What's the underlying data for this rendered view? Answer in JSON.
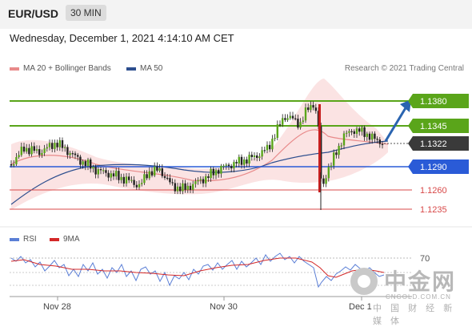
{
  "header": {
    "pair": "EUR/USD",
    "timeframe": "30 MIN"
  },
  "date": "Wednesday, December 1, 2021 4:14:10 AM CET",
  "legend": {
    "bollinger": "MA 20 + Bollinger Bands",
    "ma50": "MA 50",
    "rsi": "RSI",
    "rsi_ma": "9MA",
    "bollinger_color": "#e88a8a",
    "ma50_color": "#2d4e8e",
    "rsi_color": "#5b7fd6",
    "rsi_ma_color": "#d42828"
  },
  "credit": "Research © 2021 Trading Central",
  "levels": [
    {
      "label": "1.1380",
      "style": "green-box"
    },
    {
      "label": "1.1345",
      "style": "green-box"
    },
    {
      "label": "1.1322",
      "style": "dark-box"
    },
    {
      "label": "1.1290",
      "style": "blue-box"
    },
    {
      "label": "1.1260",
      "style": "red-text"
    },
    {
      "label": "1.1235",
      "style": "red-text"
    }
  ],
  "rsi_level": "70",
  "x_axis": [
    "Nov 28",
    "Nov 30",
    "Dec 1"
  ],
  "watermark": {
    "title": "中金网",
    "url": "CNGOLD.COM.CN",
    "subtitle": "中 国 财 经 新 媒 体"
  }
}
